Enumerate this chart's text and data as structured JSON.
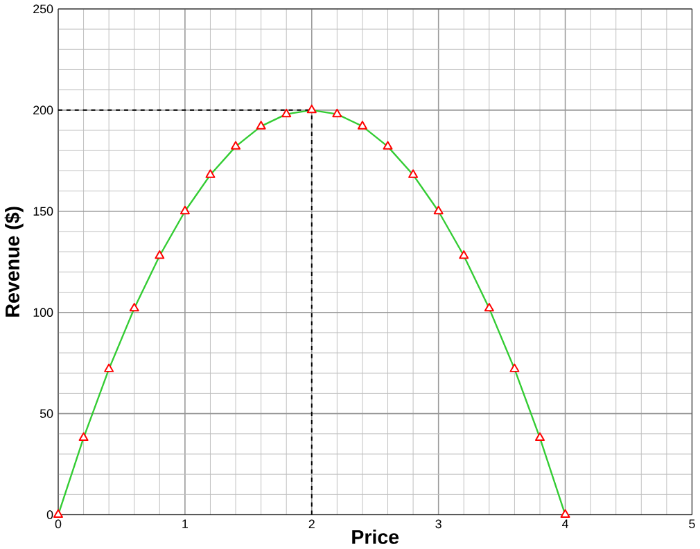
{
  "chart_data": {
    "type": "line",
    "xlabel": "Price",
    "ylabel": "Revenue ($)",
    "x": [
      0,
      0.2,
      0.4,
      0.6,
      0.8,
      1,
      1.2,
      1.4,
      1.6,
      1.8,
      2,
      2.2,
      2.4,
      2.6,
      2.8,
      3,
      3.2,
      3.4,
      3.6,
      3.8,
      4
    ],
    "series": [
      {
        "color": "#33cc33",
        "values": [
          0,
          38,
          72,
          102,
          128,
          150,
          168,
          182,
          192,
          198,
          200,
          198,
          192,
          182,
          168,
          150,
          128,
          102,
          72,
          38,
          0
        ]
      }
    ],
    "xlim": [
      0,
      5
    ],
    "ylim": [
      0,
      250
    ],
    "xticks": [
      0,
      1,
      2,
      3,
      4,
      5
    ],
    "yticks": [
      0,
      50,
      100,
      150,
      200,
      250
    ],
    "grid": true,
    "marker": "triangle",
    "line_style": "solid",
    "ref_lines": [
      {
        "axis": "y",
        "value": 200,
        "line_style": "dashed"
      },
      {
        "axis": "x",
        "value": 2,
        "line_style": "dashed"
      }
    ]
  }
}
